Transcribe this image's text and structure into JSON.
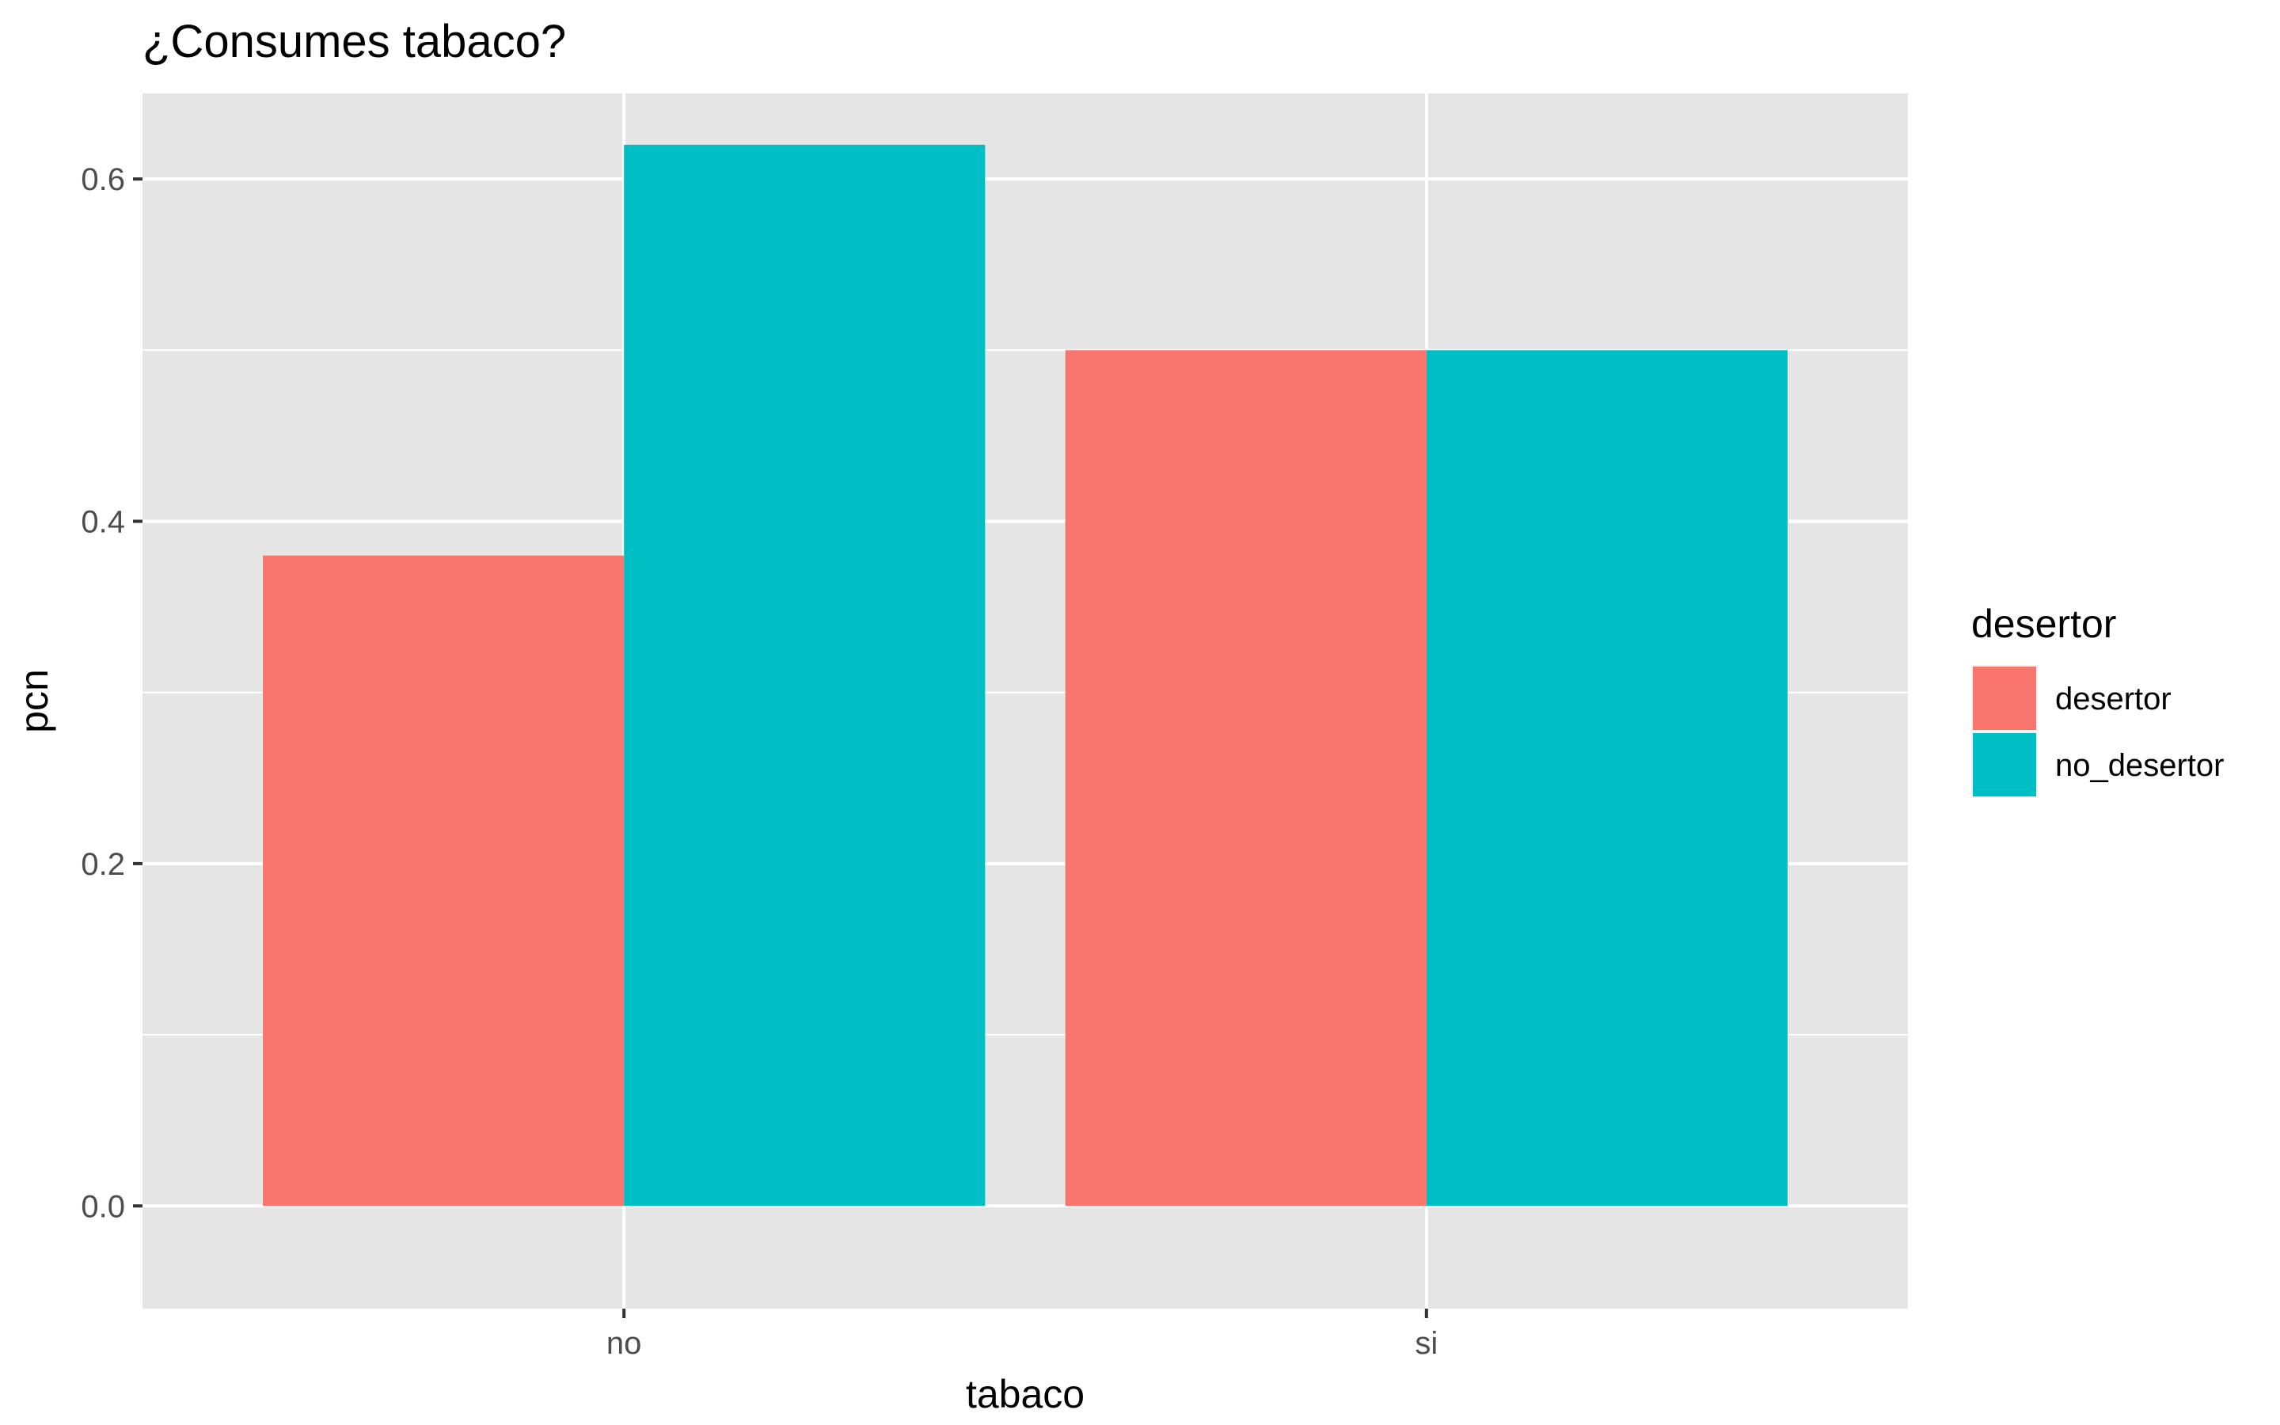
{
  "chart_data": {
    "type": "bar",
    "title": "¿Consumes tabaco?",
    "xlabel": "tabaco",
    "ylabel": "pcn",
    "categories": [
      "no",
      "si"
    ],
    "series": [
      {
        "name": "desertor",
        "values": [
          0.38,
          0.5
        ],
        "color": "#F8766D"
      },
      {
        "name": "no_desertor",
        "values": [
          0.62,
          0.5
        ],
        "color": "#00BFC4"
      }
    ],
    "ylim": [
      -0.06,
      0.65
    ],
    "yticks": [
      0.0,
      0.2,
      0.4,
      0.6
    ],
    "yticks_labels": [
      "0.0",
      "0.2",
      "0.4",
      "0.6"
    ],
    "grid": true,
    "legend": {
      "title": "desertor",
      "position": "right"
    },
    "colors": {
      "panel": "#E5E5E5",
      "grid": "#FFFFFF",
      "axis_text": "#4D4D4D"
    }
  }
}
